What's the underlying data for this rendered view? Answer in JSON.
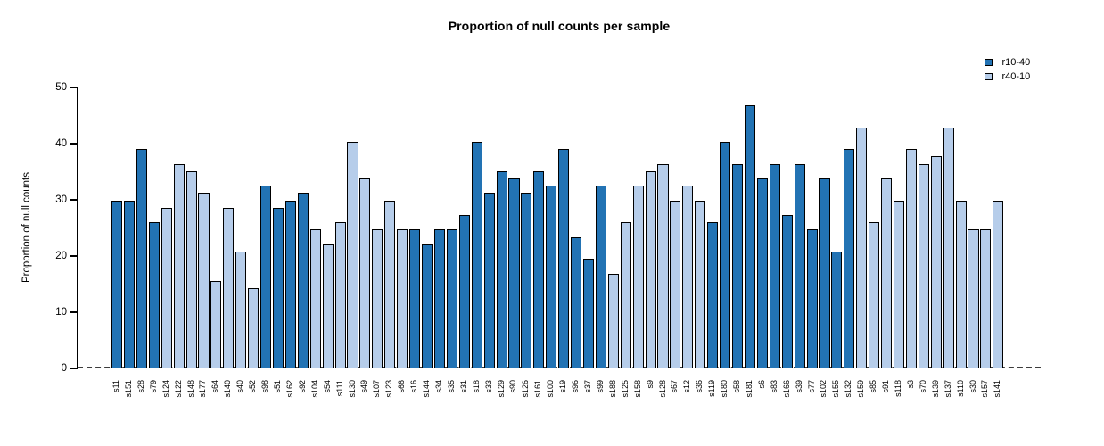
{
  "chart_data": {
    "type": "bar",
    "title": "Proportion of null counts per sample",
    "ylabel": "Proportion of null counts",
    "xlabel": "",
    "ylim": [
      0,
      50
    ],
    "yticks": [
      0,
      10,
      20,
      30,
      40,
      50
    ],
    "grid": false,
    "zero_line_style": "dashed",
    "legend_position": "top-right",
    "legend": [
      {
        "label": "r10-40",
        "color": "#2273B4"
      },
      {
        "label": "r40-10",
        "color": "#B6CDEA"
      }
    ],
    "samples": [
      {
        "label": "s11",
        "value": 29.9,
        "group": "r10-40"
      },
      {
        "label": "s151",
        "value": 29.9,
        "group": "r10-40"
      },
      {
        "label": "s28",
        "value": 39.0,
        "group": "r10-40"
      },
      {
        "label": "s79",
        "value": 26.0,
        "group": "r10-40"
      },
      {
        "label": "s124",
        "value": 28.6,
        "group": "r40-10"
      },
      {
        "label": "s122",
        "value": 36.4,
        "group": "r40-10"
      },
      {
        "label": "s148",
        "value": 35.1,
        "group": "r40-10"
      },
      {
        "label": "s177",
        "value": 31.2,
        "group": "r40-10"
      },
      {
        "label": "s64",
        "value": 15.6,
        "group": "r40-10"
      },
      {
        "label": "s140",
        "value": 28.6,
        "group": "r40-10"
      },
      {
        "label": "s40",
        "value": 20.8,
        "group": "r40-10"
      },
      {
        "label": "s52",
        "value": 14.3,
        "group": "r40-10"
      },
      {
        "label": "s98",
        "value": 32.5,
        "group": "r10-40"
      },
      {
        "label": "s51",
        "value": 28.6,
        "group": "r10-40"
      },
      {
        "label": "s162",
        "value": 29.9,
        "group": "r10-40"
      },
      {
        "label": "s92",
        "value": 31.2,
        "group": "r10-40"
      },
      {
        "label": "s104",
        "value": 24.7,
        "group": "r40-10"
      },
      {
        "label": "s54",
        "value": 22.1,
        "group": "r40-10"
      },
      {
        "label": "s111",
        "value": 26.0,
        "group": "r40-10"
      },
      {
        "label": "s130",
        "value": 40.3,
        "group": "r40-10"
      },
      {
        "label": "s49",
        "value": 33.8,
        "group": "r40-10"
      },
      {
        "label": "s107",
        "value": 24.7,
        "group": "r40-10"
      },
      {
        "label": "s123",
        "value": 29.9,
        "group": "r40-10"
      },
      {
        "label": "s66",
        "value": 24.7,
        "group": "r40-10"
      },
      {
        "label": "s16",
        "value": 24.7,
        "group": "r10-40"
      },
      {
        "label": "s144",
        "value": 22.1,
        "group": "r10-40"
      },
      {
        "label": "s34",
        "value": 24.7,
        "group": "r10-40"
      },
      {
        "label": "s35",
        "value": 24.7,
        "group": "r10-40"
      },
      {
        "label": "s31",
        "value": 27.3,
        "group": "r10-40"
      },
      {
        "label": "s18",
        "value": 40.3,
        "group": "r10-40"
      },
      {
        "label": "s33",
        "value": 31.2,
        "group": "r10-40"
      },
      {
        "label": "s129",
        "value": 35.1,
        "group": "r10-40"
      },
      {
        "label": "s90",
        "value": 33.8,
        "group": "r10-40"
      },
      {
        "label": "s126",
        "value": 31.2,
        "group": "r10-40"
      },
      {
        "label": "s161",
        "value": 35.1,
        "group": "r10-40"
      },
      {
        "label": "s100",
        "value": 32.5,
        "group": "r10-40"
      },
      {
        "label": "s19",
        "value": 39.0,
        "group": "r10-40"
      },
      {
        "label": "s96",
        "value": 23.4,
        "group": "r10-40"
      },
      {
        "label": "s37",
        "value": 19.5,
        "group": "r10-40"
      },
      {
        "label": "s99",
        "value": 32.5,
        "group": "r10-40"
      },
      {
        "label": "s188",
        "value": 16.9,
        "group": "r40-10"
      },
      {
        "label": "s125",
        "value": 26.0,
        "group": "r40-10"
      },
      {
        "label": "s158",
        "value": 32.5,
        "group": "r40-10"
      },
      {
        "label": "s9",
        "value": 35.1,
        "group": "r40-10"
      },
      {
        "label": "s128",
        "value": 36.4,
        "group": "r40-10"
      },
      {
        "label": "s67",
        "value": 29.9,
        "group": "r40-10"
      },
      {
        "label": "s12",
        "value": 32.5,
        "group": "r40-10"
      },
      {
        "label": "s36",
        "value": 29.9,
        "group": "r40-10"
      },
      {
        "label": "s119",
        "value": 26.0,
        "group": "r10-40"
      },
      {
        "label": "s180",
        "value": 40.3,
        "group": "r10-40"
      },
      {
        "label": "s58",
        "value": 36.4,
        "group": "r10-40"
      },
      {
        "label": "s181",
        "value": 46.8,
        "group": "r10-40"
      },
      {
        "label": "s6",
        "value": 33.8,
        "group": "r10-40"
      },
      {
        "label": "s83",
        "value": 36.4,
        "group": "r10-40"
      },
      {
        "label": "s166",
        "value": 27.3,
        "group": "r10-40"
      },
      {
        "label": "s39",
        "value": 36.4,
        "group": "r10-40"
      },
      {
        "label": "s77",
        "value": 24.7,
        "group": "r10-40"
      },
      {
        "label": "s102",
        "value": 33.8,
        "group": "r10-40"
      },
      {
        "label": "s155",
        "value": 20.8,
        "group": "r10-40"
      },
      {
        "label": "s132",
        "value": 39.0,
        "group": "r10-40"
      },
      {
        "label": "s159",
        "value": 42.9,
        "group": "r40-10"
      },
      {
        "label": "s85",
        "value": 26.0,
        "group": "r40-10"
      },
      {
        "label": "s91",
        "value": 33.8,
        "group": "r40-10"
      },
      {
        "label": "s118",
        "value": 29.9,
        "group": "r40-10"
      },
      {
        "label": "s3",
        "value": 39.0,
        "group": "r40-10"
      },
      {
        "label": "s70",
        "value": 36.4,
        "group": "r40-10"
      },
      {
        "label": "s139",
        "value": 37.7,
        "group": "r40-10"
      },
      {
        "label": "s137",
        "value": 42.9,
        "group": "r40-10"
      },
      {
        "label": "s110",
        "value": 29.9,
        "group": "r40-10"
      },
      {
        "label": "s30",
        "value": 24.7,
        "group": "r40-10"
      },
      {
        "label": "s157",
        "value": 24.7,
        "group": "r40-10"
      },
      {
        "label": "s141",
        "value": 29.9,
        "group": "r40-10"
      }
    ]
  }
}
